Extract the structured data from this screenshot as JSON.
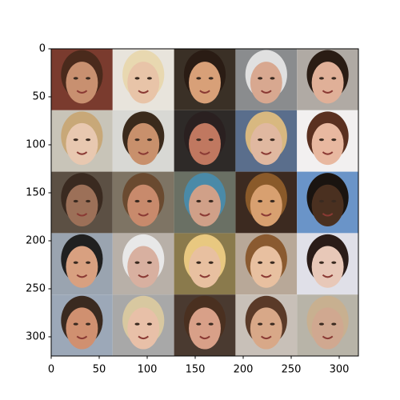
{
  "chart_data": {
    "type": "image",
    "xlim": [
      0,
      320
    ],
    "ylim": [
      320,
      0
    ],
    "xticks": [
      0,
      50,
      100,
      150,
      200,
      250,
      300
    ],
    "yticks": [
      0,
      50,
      100,
      150,
      200,
      250,
      300
    ]
  }
}
